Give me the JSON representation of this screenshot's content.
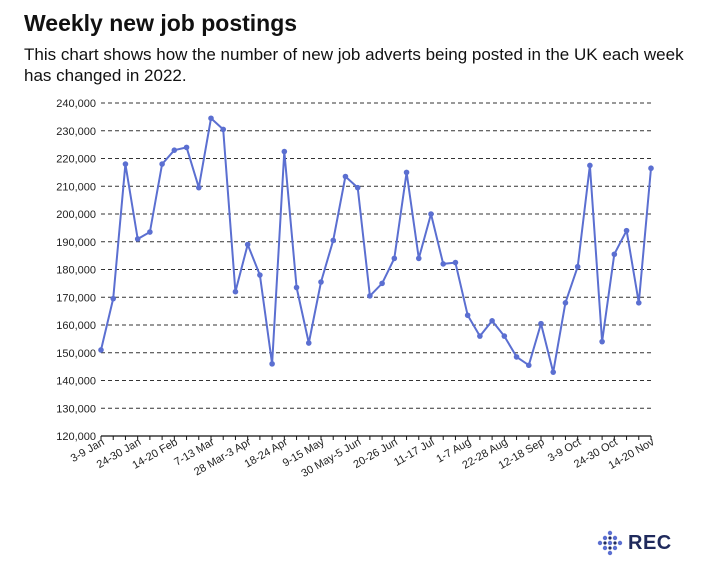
{
  "header": {
    "title": "Weekly new job postings",
    "subtitle": "This chart shows how the number of new job adverts being posted in the UK each week has changed in 2022."
  },
  "logo": {
    "text": "REC",
    "icon": "rec-dots-logo-icon"
  },
  "colors": {
    "line": "#5b6fd1",
    "grid": "#333333",
    "logo": "#1f2a5c"
  },
  "chart_data": {
    "type": "line",
    "title": "Weekly new job postings",
    "xlabel": "",
    "ylabel": "",
    "ylim": [
      120000,
      240000
    ],
    "yticks": [
      "120,000",
      "130,000",
      "140,000",
      "150,000",
      "160,000",
      "170,000",
      "180,000",
      "190,000",
      "200,000",
      "210,000",
      "220,000",
      "230,000",
      "240,000"
    ],
    "xtick_labels": [
      "3-9 Jan",
      "24-30 Jan",
      "14-20 Feb",
      "7-13 Mar",
      "28 Mar-3 Apr",
      "18-24 Apr",
      "9-15 May",
      "30 May-5 Jun",
      "20-26 Jun",
      "11-17 Jul",
      "1-7 Aug",
      "22-28 Aug",
      "12-18 Sep",
      "3-9 Oct",
      "24-30 Oct",
      "14-20 Nov"
    ],
    "grid": "horizontal dashed",
    "series": [
      {
        "values": [
          151000,
          169500,
          218000,
          191000,
          193500,
          218000,
          223000,
          224000,
          209500,
          234500,
          230500,
          172000,
          189000,
          178000,
          146000,
          222500,
          173500,
          153500,
          175500,
          190500,
          213500,
          209500,
          170500,
          175000,
          184000,
          215000,
          184000,
          200000,
          182000,
          182500,
          163500,
          156000,
          161500,
          156000,
          148500,
          145500,
          160500,
          143000,
          168000,
          181000,
          217500,
          154000,
          185500,
          194000,
          168000,
          216500
        ]
      }
    ]
  }
}
